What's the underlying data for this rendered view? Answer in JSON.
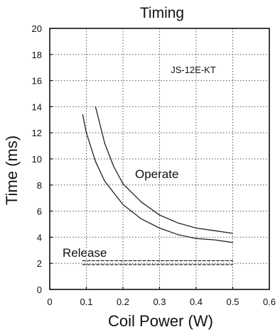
{
  "chart_data": {
    "type": "line",
    "title": "Timing",
    "xlabel": "Coil Power (W)",
    "ylabel": "Time (ms)",
    "xlim": [
      0,
      0.6
    ],
    "ylim": [
      0,
      20
    ],
    "x_ticks": [
      "0",
      "0.1",
      "0.2",
      "0.3",
      "0.4",
      "0.5",
      "0.6"
    ],
    "y_ticks": [
      "0",
      "2",
      "4",
      "6",
      "8",
      "10",
      "12",
      "14",
      "16",
      "18",
      "20"
    ],
    "grid": true,
    "annotations": {
      "model": "JS-12E-KT",
      "operate_label": "Operate",
      "release_label": "Release"
    },
    "series": [
      {
        "name": "Operate",
        "style": "solid",
        "color": "#222222",
        "x": [
          0.125,
          0.15,
          0.175,
          0.2,
          0.25,
          0.3,
          0.35,
          0.4,
          0.45,
          0.5
        ],
        "y": [
          14.0,
          11.2,
          9.4,
          8.1,
          6.7,
          5.7,
          5.1,
          4.7,
          4.5,
          4.3
        ]
      },
      {
        "name": "Operate",
        "style": "solid",
        "color": "#222222",
        "x": [
          0.09,
          0.1,
          0.125,
          0.15,
          0.2,
          0.25,
          0.3,
          0.35,
          0.4,
          0.45,
          0.5
        ],
        "y": [
          13.4,
          12.0,
          9.8,
          8.3,
          6.5,
          5.4,
          4.7,
          4.2,
          3.9,
          3.8,
          3.6
        ]
      },
      {
        "name": "Release",
        "style": "dashed",
        "color": "#222222",
        "x": [
          0.09,
          0.5
        ],
        "y": [
          2.2,
          2.2
        ]
      },
      {
        "name": "Release",
        "style": "dashed",
        "color": "#222222",
        "x": [
          0.09,
          0.5
        ],
        "y": [
          1.9,
          1.9
        ]
      }
    ]
  }
}
